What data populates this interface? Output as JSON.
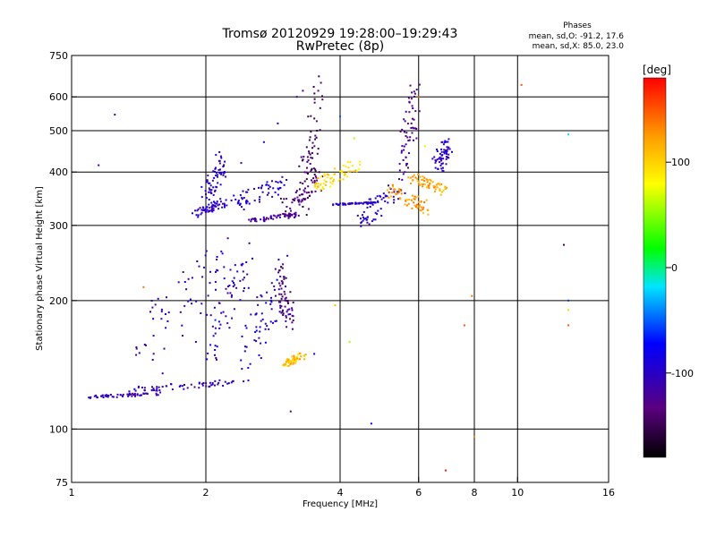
{
  "chart_data": {
    "type": "scatter",
    "title": "Tromsø 20120929 19:28:00–19:29:43",
    "subtitle": "RwPretec (8p)",
    "xlabel": "Frequency [MHz]",
    "ylabel": "Stationary phase Virtual Height [km]",
    "xscale": "log",
    "yscale": "log",
    "xlim": [
      1,
      16
    ],
    "ylim": [
      75,
      750
    ],
    "xticks": [
      1,
      2,
      4,
      6,
      8,
      10,
      16
    ],
    "yticks": [
      75,
      100,
      200,
      300,
      400,
      500,
      600,
      750
    ],
    "grid_x": [
      2,
      4,
      6,
      8,
      10
    ],
    "grid_y": [
      100,
      200,
      300,
      400,
      500,
      600
    ],
    "grid": true,
    "phase_box": {
      "title": "Phases",
      "line_o": "mean, sd,O: -91.2, 17.6",
      "line_x": "mean, sd,X: 85.0, 23.0"
    },
    "colorbar": {
      "label": "[deg]",
      "range": [
        -180,
        180
      ],
      "ticks": [
        100,
        0,
        -100
      ],
      "colormap": "rainbow (black-purple-blue-cyan-green-yellow-red)"
    },
    "series": [
      {
        "segments": [
          {
            "x": [
              1.08,
              1.6
            ],
            "y": [
              118,
              122
            ],
            "phase": -110
          },
          {
            "x": [
              1.35,
              2.3
            ],
            "y": [
              122,
              130
            ],
            "phase": -105
          },
          {
            "x": [
              1.4,
              2.2
            ],
            "y": [
              140,
              270
            ],
            "phase": -105
          },
          {
            "x": [
              2.05,
              2.5
            ],
            "y": [
              150,
              270
            ],
            "phase": -100
          },
          {
            "x": [
              2.4,
              3.0
            ],
            "y": [
              130,
              250
            ],
            "phase": -95
          }
        ],
        "points": [
          {
            "x": 1.6,
            "y": 135,
            "phase": -110
          },
          {
            "x": 1.9,
            "y": 160,
            "phase": -110
          },
          {
            "x": 2.1,
            "y": 180,
            "phase": -60
          },
          {
            "x": 2.6,
            "y": 170,
            "phase": -70
          },
          {
            "x": 2.8,
            "y": 200,
            "phase": -75
          },
          {
            "x": 1.45,
            "y": 215,
            "phase": 140
          },
          {
            "x": 1.25,
            "y": 545,
            "phase": -100
          },
          {
            "x": 1.15,
            "y": 415,
            "phase": -110
          }
        ]
      },
      {
        "segments": [
          {
            "x": [
              2.9,
              3.1
            ],
            "y": [
              240,
              175
            ],
            "phase": -130
          },
          {
            "x": [
              3.0,
              3.3
            ],
            "y": [
              140,
              150
            ],
            "phase": 110
          }
        ],
        "points": [
          {
            "x": 3.5,
            "y": 150,
            "phase": -80
          },
          {
            "x": 3.1,
            "y": 110,
            "phase": -130
          }
        ]
      },
      {
        "segments": [
          {
            "x": [
              1.9,
              2.2
            ],
            "y": [
              315,
              345
            ],
            "phase": -100
          },
          {
            "x": [
              2.0,
              2.2
            ],
            "y": [
              345,
              445
            ],
            "phase": -100
          },
          {
            "x": [
              2.3,
              3.0
            ],
            "y": [
              325,
              390
            ],
            "phase": -95
          },
          {
            "x": [
              2.5,
              3.2
            ],
            "y": [
              305,
              320
            ],
            "phase": -120
          },
          {
            "x": [
              3.0,
              3.6
            ],
            "y": [
              315,
              400
            ],
            "phase": -135
          },
          {
            "x": [
              3.3,
              3.6
            ],
            "y": [
              330,
              650
            ],
            "phase": -140
          }
        ],
        "points": [
          {
            "x": 2.4,
            "y": 420,
            "phase": -100
          },
          {
            "x": 2.7,
            "y": 470,
            "phase": -105
          },
          {
            "x": 2.9,
            "y": 520,
            "phase": -95
          },
          {
            "x": 3.2,
            "y": 600,
            "phase": -110
          }
        ]
      },
      {
        "segments": [
          {
            "x": [
              3.5,
              4.4
            ],
            "y": [
              360,
              430
            ],
            "phase": 95
          },
          {
            "x": [
              3.9,
              4.8
            ],
            "y": [
              335,
              340
            ],
            "phase": -100
          },
          {
            "x": [
              4.4,
              5.5
            ],
            "y": [
              300,
              380
            ],
            "phase": -100
          },
          {
            "x": [
              5.2,
              6.3
            ],
            "y": [
              370,
              320
            ],
            "phase": 125
          },
          {
            "x": [
              5.5,
              5.9
            ],
            "y": [
              380,
              640
            ],
            "phase": -120
          },
          {
            "x": [
              5.8,
              6.9
            ],
            "y": [
              395,
              355
            ],
            "phase": 120
          },
          {
            "x": [
              6.6,
              7.0
            ],
            "y": [
              400,
              480
            ],
            "phase": -100
          }
        ],
        "points": [
          {
            "x": 4.0,
            "y": 540,
            "phase": -50
          },
          {
            "x": 4.3,
            "y": 480,
            "phase": 60
          },
          {
            "x": 6.0,
            "y": 600,
            "phase": 150
          },
          {
            "x": 6.2,
            "y": 460,
            "phase": 90
          },
          {
            "x": 3.3,
            "y": 620,
            "phase": -110
          },
          {
            "x": 4.7,
            "y": 103,
            "phase": -80
          },
          {
            "x": 6.9,
            "y": 80,
            "phase": 170
          },
          {
            "x": 7.9,
            "y": 205,
            "phase": 140
          },
          {
            "x": 7.6,
            "y": 175,
            "phase": 150
          },
          {
            "x": 10.2,
            "y": 640,
            "phase": 150
          },
          {
            "x": 12.7,
            "y": 270,
            "phase": -150
          },
          {
            "x": 13.0,
            "y": 200,
            "phase": -60
          },
          {
            "x": 13.0,
            "y": 190,
            "phase": 100
          },
          {
            "x": 13.0,
            "y": 175,
            "phase": 150
          },
          {
            "x": 13.0,
            "y": 490,
            "phase": -20
          },
          {
            "x": 3.9,
            "y": 195,
            "phase": 110
          },
          {
            "x": 4.2,
            "y": 160,
            "phase": 60
          },
          {
            "x": 8.0,
            "y": 96,
            "phase": 130
          }
        ]
      }
    ]
  }
}
